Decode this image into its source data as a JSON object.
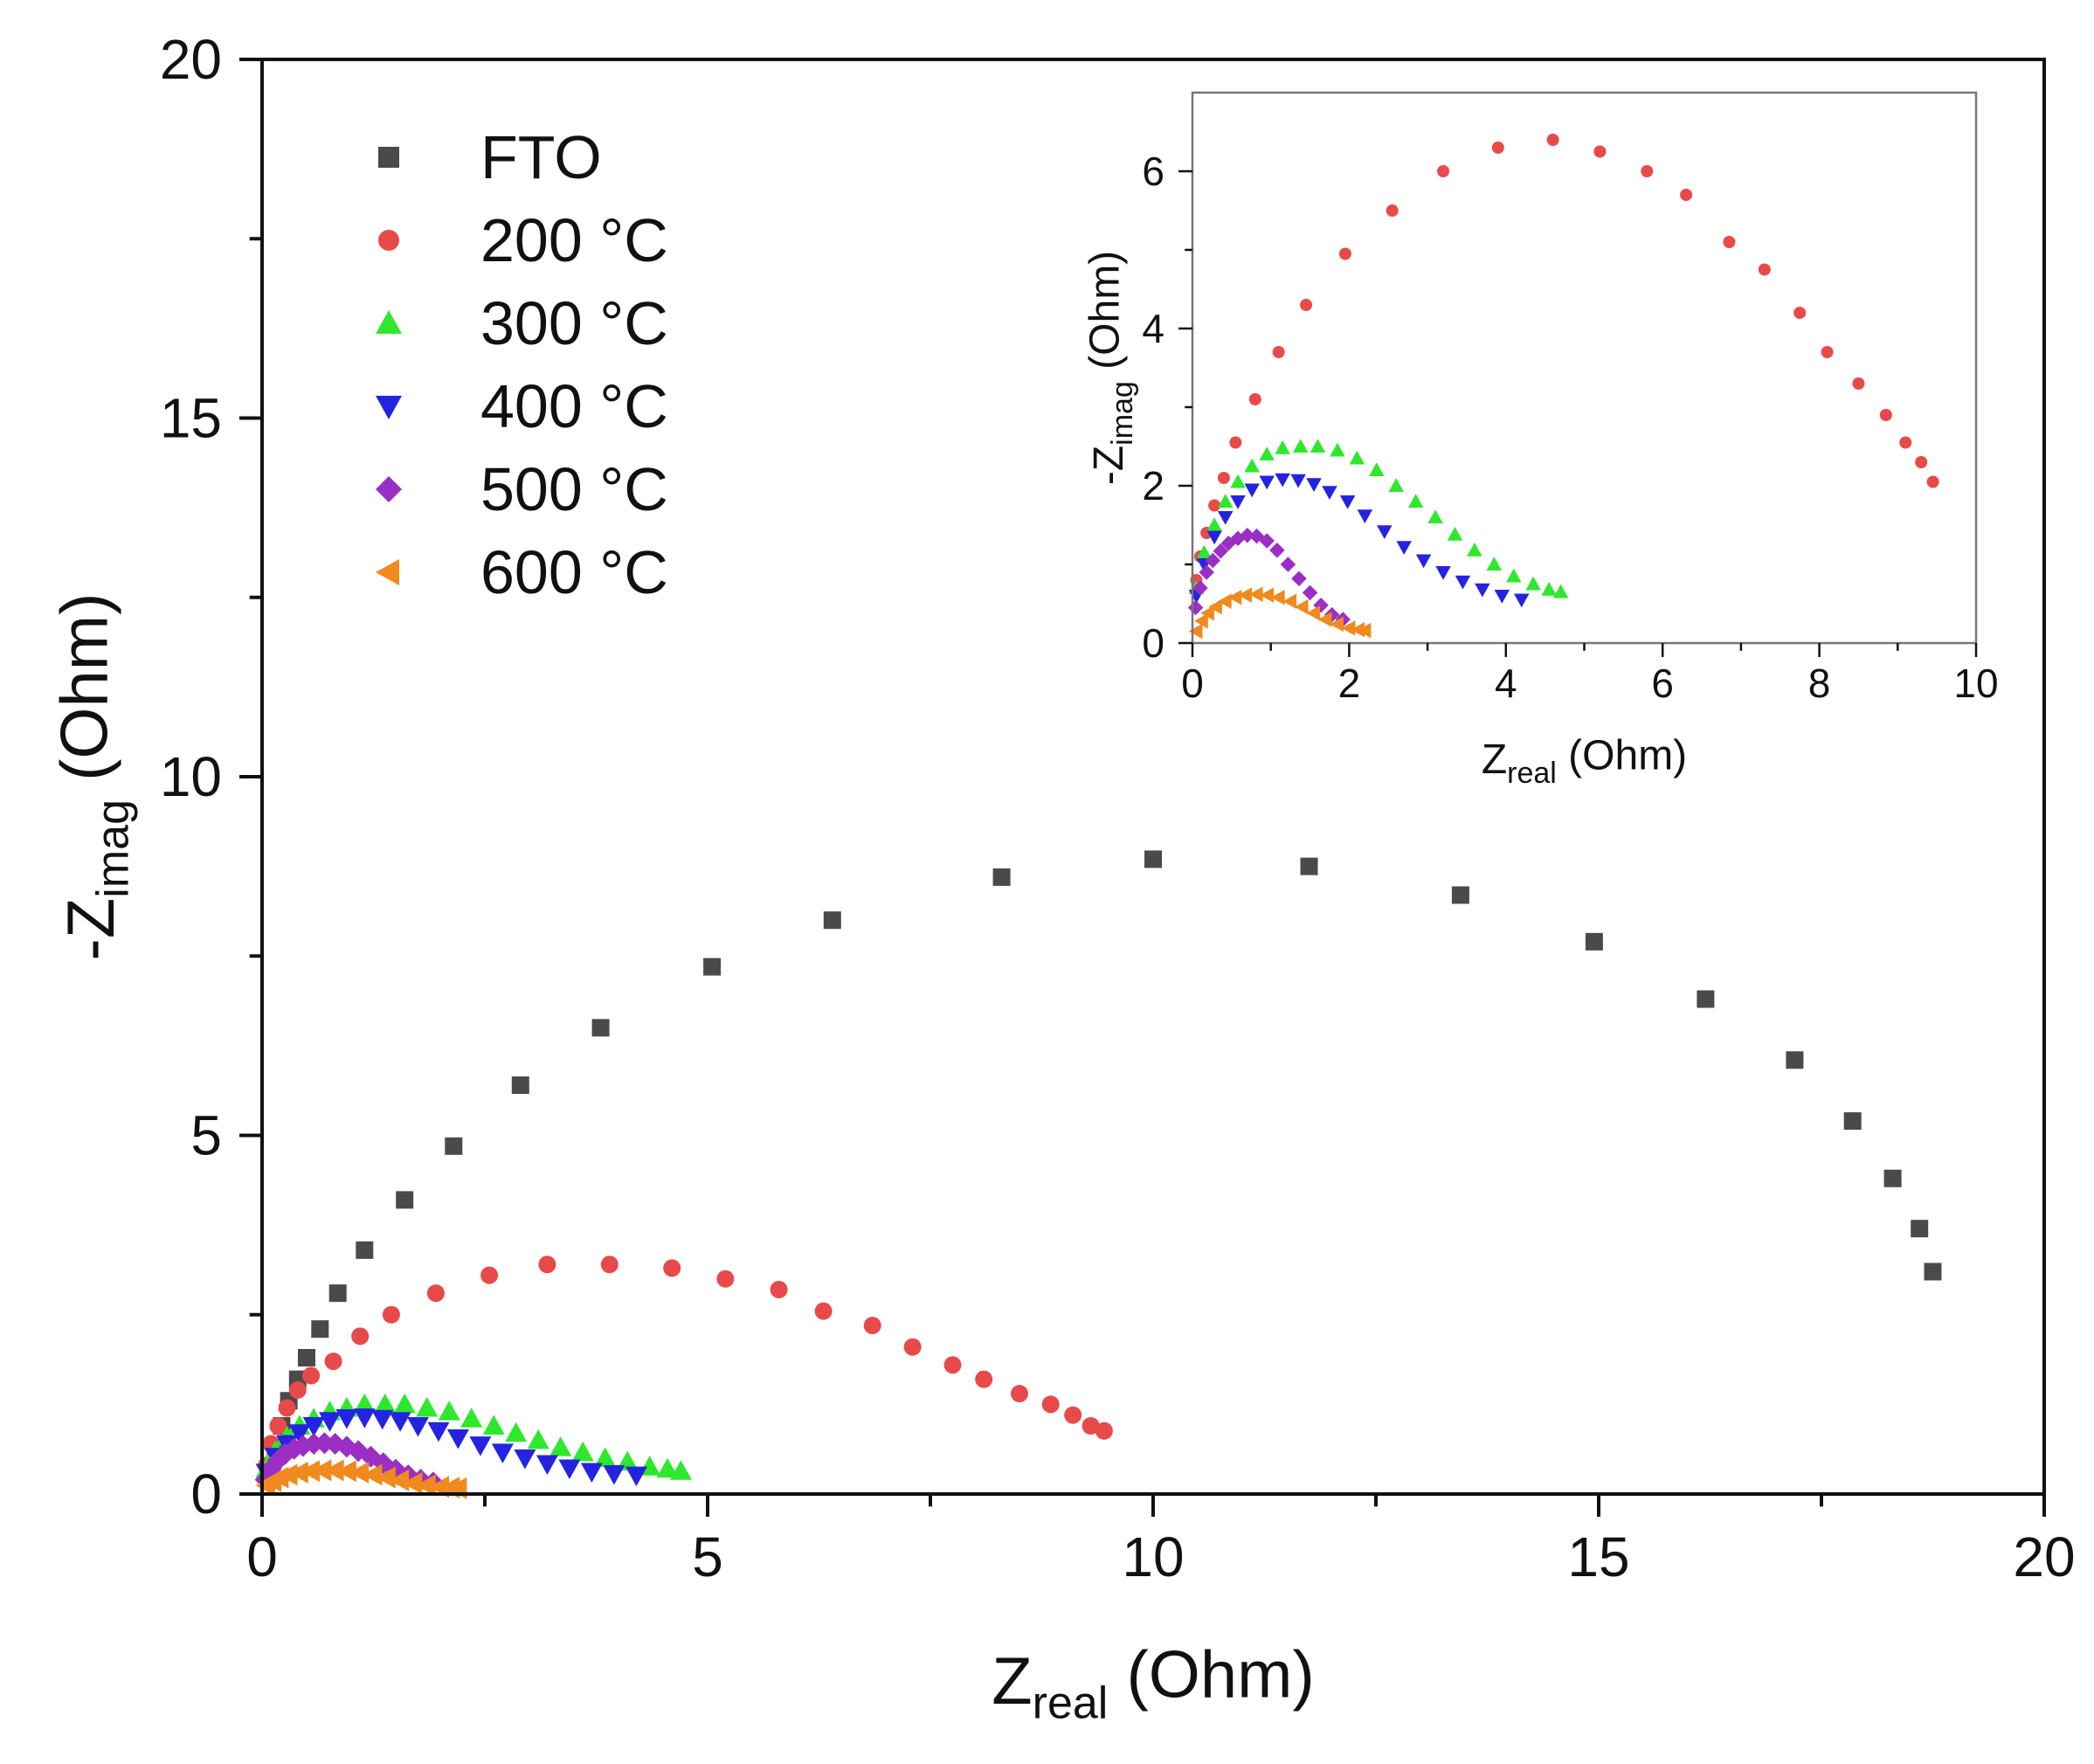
{
  "chart_data": [
    {
      "type": "scatter",
      "id": "main",
      "xlabel": {
        "main": "Z",
        "sub": "real",
        "unit": " (Ohm)"
      },
      "ylabel": {
        "prefix": "-Z",
        "sub": "imag",
        "unit": " (Ohm)"
      },
      "xlim": [
        0,
        20
      ],
      "ylim": [
        0,
        20
      ],
      "xticks": [
        0,
        5,
        10,
        15,
        20
      ],
      "yticks": [
        0,
        5,
        10,
        15,
        20
      ],
      "legend_position": "top-left",
      "series": [
        {
          "name": "FTO",
          "marker": "square",
          "color": "#4a4a4a",
          "x": [
            0.08,
            0.15,
            0.22,
            0.3,
            0.4,
            0.5,
            0.65,
            0.85,
            1.15,
            1.6,
            2.15,
            2.9,
            3.8,
            5.05,
            6.4,
            8.3,
            10.0,
            11.75,
            13.45,
            14.95,
            16.2,
            17.2,
            17.85,
            18.3,
            18.6,
            18.75
          ],
          "y": [
            0.3,
            0.65,
            0.95,
            1.3,
            1.6,
            1.9,
            2.3,
            2.8,
            3.4,
            4.1,
            4.85,
            5.7,
            6.5,
            7.35,
            8.0,
            8.6,
            8.85,
            8.75,
            8.35,
            7.7,
            6.9,
            6.05,
            5.2,
            4.4,
            3.7,
            3.1
          ]
        },
        {
          "name": "200 °C",
          "marker": "circle",
          "color": "#e84a4a",
          "x": [
            0.05,
            0.1,
            0.18,
            0.28,
            0.4,
            0.55,
            0.8,
            1.1,
            1.45,
            1.95,
            2.55,
            3.2,
            3.9,
            4.6,
            5.2,
            5.8,
            6.3,
            6.85,
            7.3,
            7.75,
            8.1,
            8.5,
            8.85,
            9.1,
            9.3,
            9.45
          ],
          "y": [
            0.4,
            0.7,
            0.95,
            1.2,
            1.45,
            1.65,
            1.85,
            2.2,
            2.5,
            2.8,
            3.05,
            3.2,
            3.2,
            3.15,
            3.0,
            2.85,
            2.55,
            2.35,
            2.05,
            1.8,
            1.6,
            1.4,
            1.25,
            1.1,
            0.95,
            0.88
          ]
        },
        {
          "name": "300 °C",
          "marker": "triangle-up",
          "color": "#2ee82e",
          "x": [
            0.05,
            0.15,
            0.28,
            0.42,
            0.58,
            0.76,
            0.95,
            1.15,
            1.38,
            1.6,
            1.85,
            2.1,
            2.35,
            2.6,
            2.85,
            3.1,
            3.35,
            3.6,
            3.85,
            4.1,
            4.35,
            4.55,
            4.7
          ],
          "y": [
            0.35,
            0.6,
            0.8,
            0.95,
            1.05,
            1.15,
            1.2,
            1.25,
            1.25,
            1.25,
            1.2,
            1.15,
            1.05,
            0.95,
            0.85,
            0.75,
            0.65,
            0.58,
            0.5,
            0.45,
            0.38,
            0.35,
            0.32
          ]
        },
        {
          "name": "400 °C",
          "marker": "triangle-down",
          "color": "#2424e0",
          "x": [
            0.05,
            0.15,
            0.28,
            0.42,
            0.58,
            0.76,
            0.95,
            1.15,
            1.35,
            1.55,
            1.75,
            1.98,
            2.2,
            2.45,
            2.7,
            2.95,
            3.2,
            3.45,
            3.7,
            3.95,
            4.2
          ],
          "y": [
            0.3,
            0.52,
            0.7,
            0.85,
            0.95,
            1.02,
            1.06,
            1.07,
            1.05,
            1.02,
            0.95,
            0.88,
            0.78,
            0.68,
            0.58,
            0.5,
            0.42,
            0.36,
            0.31,
            0.28,
            0.26
          ]
        },
        {
          "name": "500 °C",
          "marker": "diamond",
          "color": "#9b2ec4",
          "x": [
            0.04,
            0.1,
            0.18,
            0.26,
            0.36,
            0.46,
            0.58,
            0.7,
            0.82,
            0.95,
            1.08,
            1.22,
            1.36,
            1.5,
            1.64,
            1.78,
            1.92
          ],
          "y": [
            0.2,
            0.35,
            0.47,
            0.56,
            0.63,
            0.67,
            0.7,
            0.71,
            0.7,
            0.66,
            0.6,
            0.52,
            0.43,
            0.34,
            0.26,
            0.2,
            0.16
          ]
        },
        {
          "name": "600 °C",
          "marker": "triangle-left",
          "color": "#f08a1e",
          "x": [
            0.05,
            0.12,
            0.2,
            0.3,
            0.42,
            0.55,
            0.68,
            0.82,
            0.96,
            1.1,
            1.25,
            1.4,
            1.55,
            1.7,
            1.85,
            2.0,
            2.12,
            2.2
          ],
          "y": [
            0.12,
            0.18,
            0.23,
            0.27,
            0.3,
            0.32,
            0.33,
            0.33,
            0.32,
            0.3,
            0.27,
            0.23,
            0.19,
            0.15,
            0.12,
            0.1,
            0.09,
            0.08
          ]
        }
      ]
    },
    {
      "type": "scatter",
      "id": "inset",
      "xlabel": {
        "main": "Z",
        "sub": "real",
        "unit": " (Ohm)"
      },
      "ylabel": {
        "prefix": "-Z",
        "sub": "imag",
        "unit": " (Ohm)"
      },
      "xlim": [
        0,
        10
      ],
      "ylim": [
        0,
        7
      ],
      "xticks": [
        0,
        2,
        4,
        6,
        8,
        10
      ],
      "yticks": [
        0,
        2,
        4,
        6
      ],
      "series": [
        {
          "name": "200 °C",
          "marker": "circle",
          "color": "#e84a4a",
          "x": [
            0.05,
            0.1,
            0.18,
            0.28,
            0.4,
            0.55,
            0.8,
            1.1,
            1.45,
            1.95,
            2.55,
            3.2,
            3.9,
            4.6,
            5.2,
            5.8,
            6.3,
            6.85,
            7.3,
            7.75,
            8.1,
            8.5,
            8.85,
            9.1,
            9.3,
            9.45
          ],
          "y": [
            0.8,
            1.1,
            1.4,
            1.75,
            2.1,
            2.55,
            3.1,
            3.7,
            4.3,
            4.95,
            5.5,
            6.0,
            6.3,
            6.4,
            6.25,
            6.0,
            5.7,
            5.1,
            4.75,
            4.2,
            3.7,
            3.3,
            2.9,
            2.55,
            2.3,
            2.05
          ]
        },
        {
          "name": "300 °C",
          "marker": "triangle-up",
          "color": "#2ee82e",
          "x": [
            0.05,
            0.15,
            0.28,
            0.42,
            0.58,
            0.76,
            0.95,
            1.15,
            1.38,
            1.6,
            1.85,
            2.1,
            2.35,
            2.6,
            2.85,
            3.1,
            3.35,
            3.6,
            3.85,
            4.1,
            4.35,
            4.55,
            4.7
          ],
          "y": [
            0.7,
            1.15,
            1.5,
            1.8,
            2.05,
            2.25,
            2.4,
            2.48,
            2.5,
            2.5,
            2.45,
            2.35,
            2.2,
            2.0,
            1.8,
            1.6,
            1.38,
            1.18,
            1.0,
            0.85,
            0.75,
            0.68,
            0.65
          ]
        },
        {
          "name": "400 °C",
          "marker": "triangle-down",
          "color": "#2424e0",
          "x": [
            0.05,
            0.15,
            0.28,
            0.42,
            0.58,
            0.76,
            0.95,
            1.15,
            1.35,
            1.55,
            1.75,
            1.98,
            2.2,
            2.45,
            2.7,
            2.95,
            3.2,
            3.45,
            3.7,
            3.95,
            4.2
          ],
          "y": [
            0.6,
            1.0,
            1.35,
            1.6,
            1.8,
            1.95,
            2.05,
            2.08,
            2.07,
            2.02,
            1.92,
            1.8,
            1.62,
            1.42,
            1.22,
            1.05,
            0.9,
            0.78,
            0.68,
            0.6,
            0.55
          ]
        },
        {
          "name": "500 °C",
          "marker": "diamond",
          "color": "#9b2ec4",
          "x": [
            0.04,
            0.1,
            0.18,
            0.26,
            0.36,
            0.46,
            0.58,
            0.7,
            0.82,
            0.95,
            1.08,
            1.22,
            1.36,
            1.5,
            1.64,
            1.78,
            1.92
          ],
          "y": [
            0.45,
            0.7,
            0.9,
            1.05,
            1.17,
            1.27,
            1.33,
            1.37,
            1.36,
            1.3,
            1.18,
            1.0,
            0.82,
            0.64,
            0.48,
            0.36,
            0.3
          ]
        },
        {
          "name": "600 °C",
          "marker": "triangle-left",
          "color": "#f08a1e",
          "x": [
            0.05,
            0.12,
            0.2,
            0.3,
            0.42,
            0.55,
            0.68,
            0.82,
            0.96,
            1.1,
            1.25,
            1.4,
            1.55,
            1.7,
            1.85,
            2.0,
            2.12,
            2.2
          ],
          "y": [
            0.15,
            0.28,
            0.38,
            0.46,
            0.53,
            0.58,
            0.61,
            0.62,
            0.61,
            0.58,
            0.53,
            0.46,
            0.38,
            0.3,
            0.24,
            0.19,
            0.17,
            0.16
          ]
        }
      ]
    }
  ]
}
